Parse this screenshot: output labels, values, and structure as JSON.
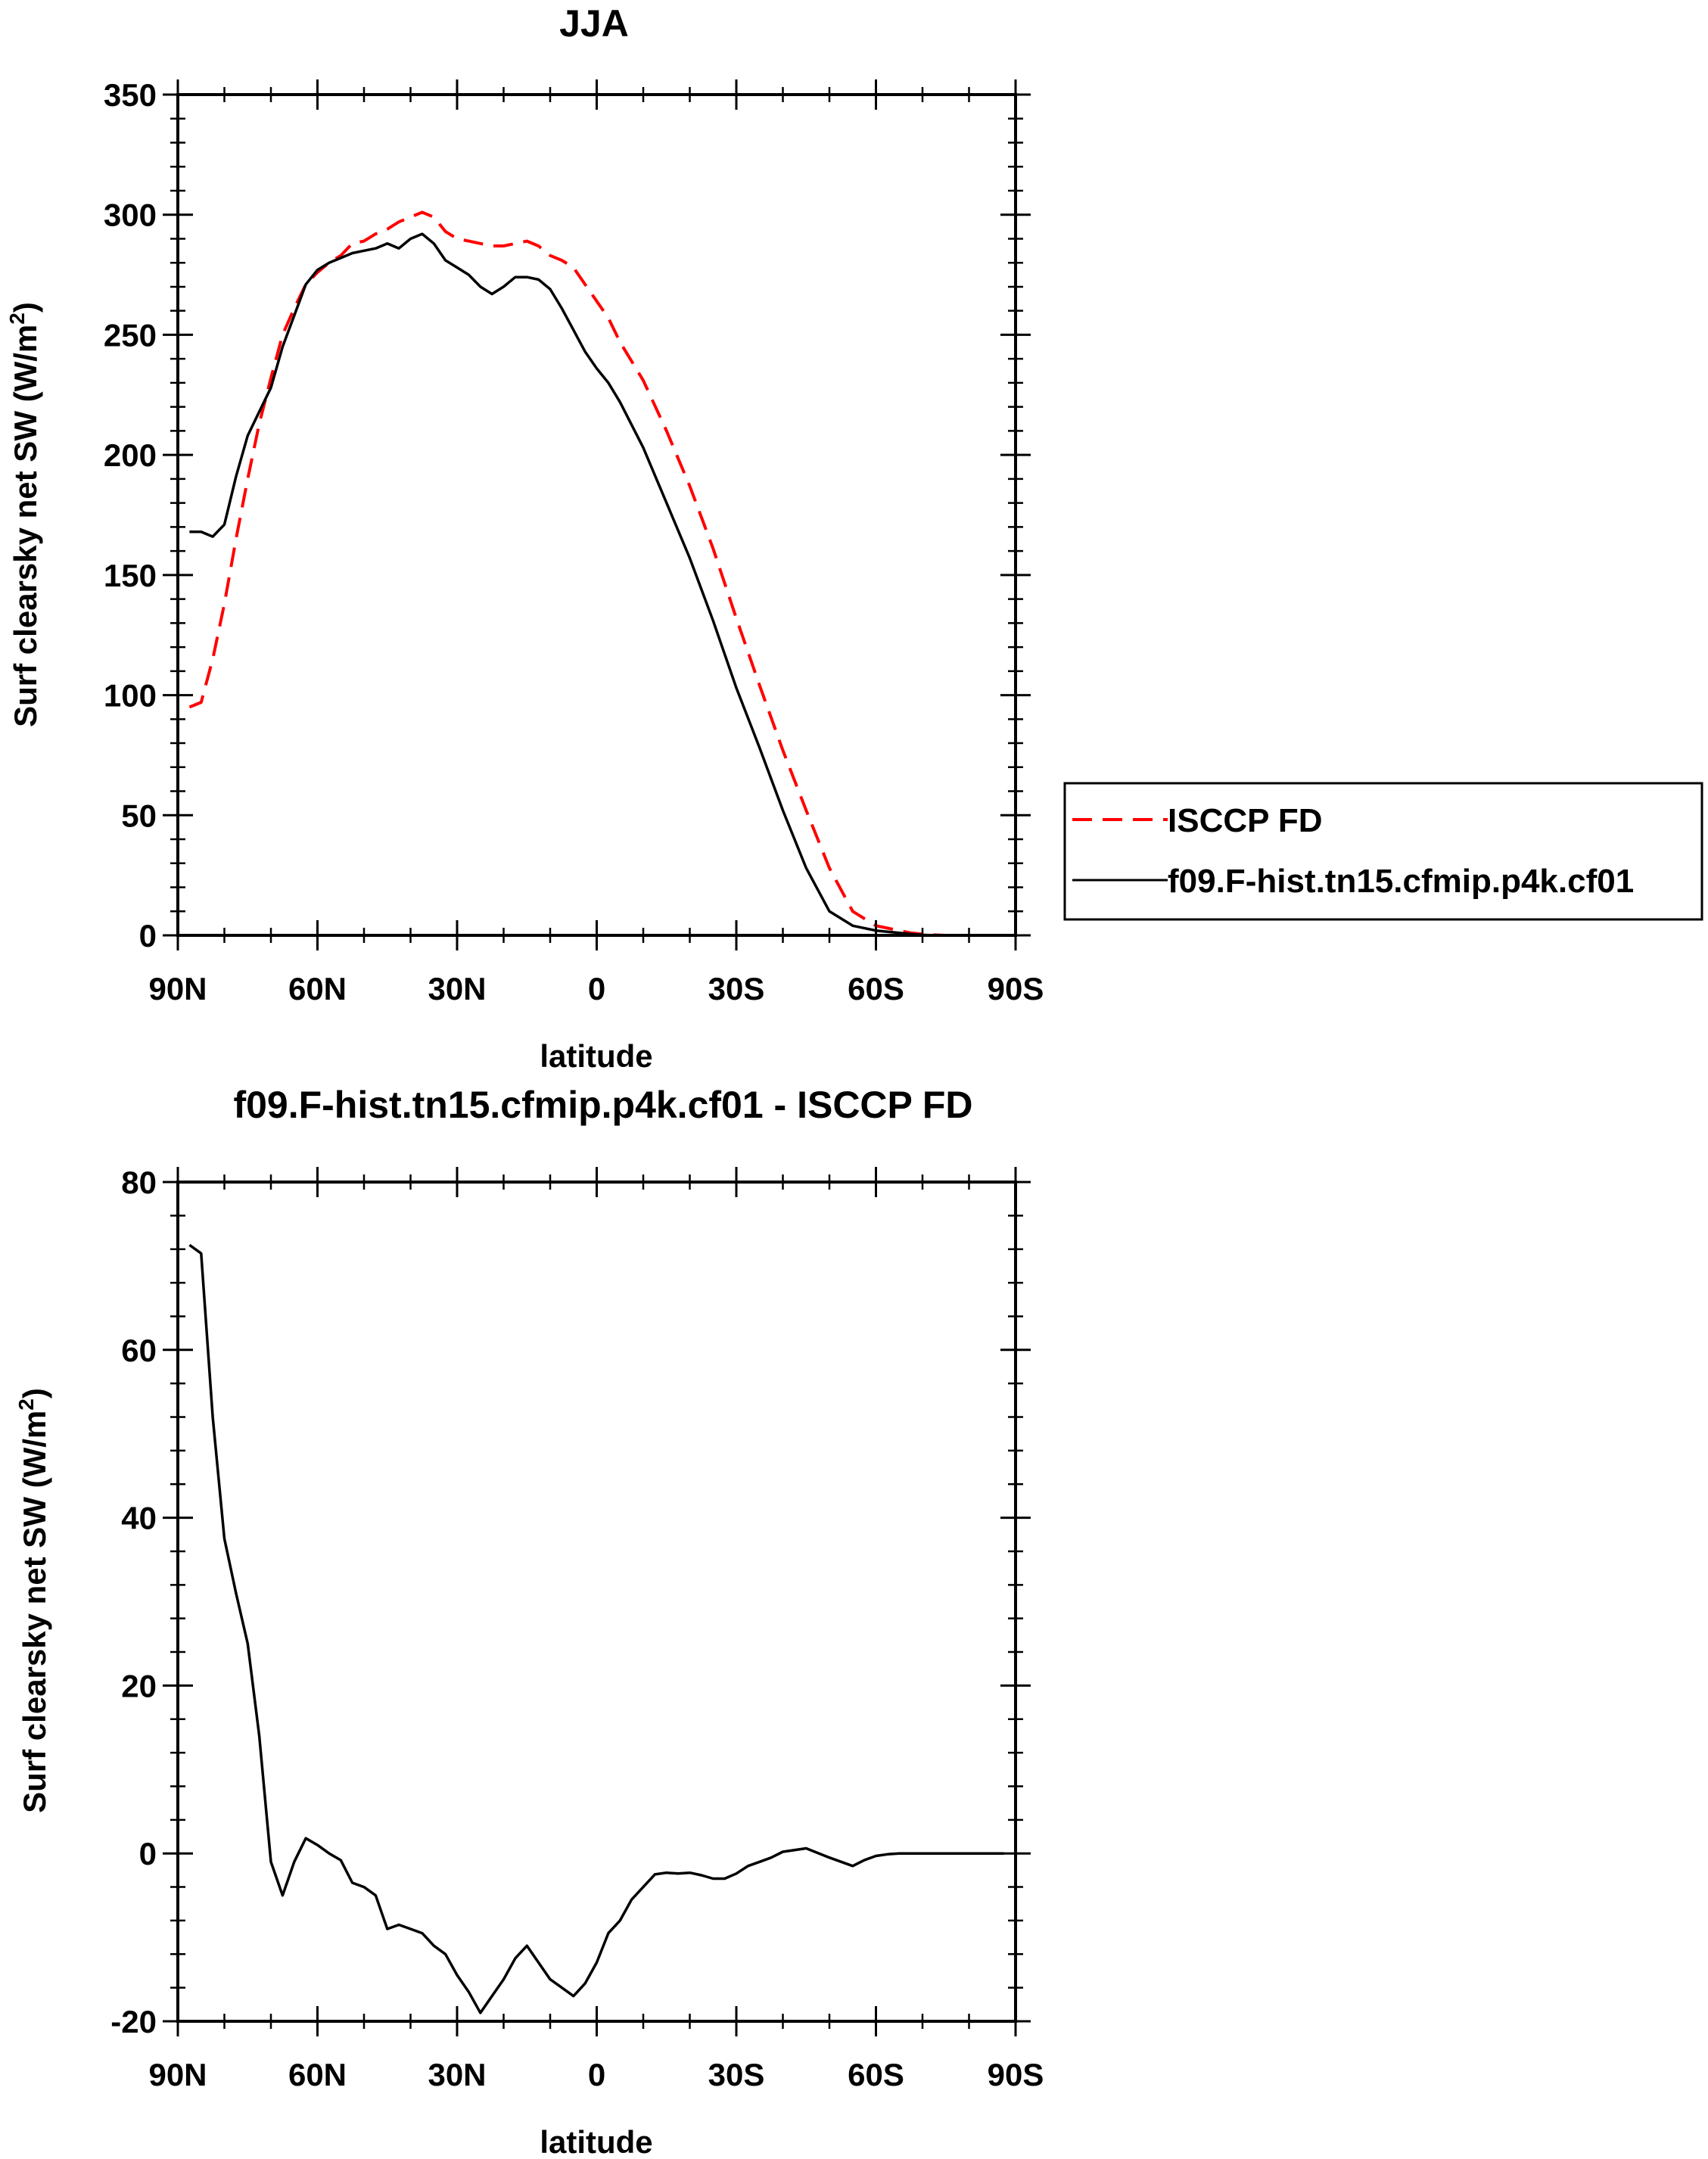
{
  "colors": {
    "model": "#000000",
    "obs": "#ff0000",
    "background": "#ffffff"
  },
  "chart_data": [
    {
      "type": "line",
      "title": "JJA",
      "xlabel": "latitude",
      "ylabel": "Surf clearsky net SW (W/m",
      "ylabel_sup": "2",
      "ylabel_close": ")",
      "xlim": [
        90,
        -90
      ],
      "ylim": [
        0,
        350
      ],
      "xticks": [
        90,
        60,
        30,
        0,
        -30,
        -60,
        -90
      ],
      "xtick_labels": [
        "90N",
        "60N",
        "30N",
        "0",
        "30S",
        "60S",
        "90S"
      ],
      "yticks": [
        0,
        50,
        100,
        150,
        200,
        250,
        300,
        350
      ],
      "ytick_labels": [
        "0",
        "50",
        "100",
        "150",
        "200",
        "250",
        "300",
        "350"
      ],
      "legend_position": "right",
      "series": [
        {
          "name": "ISCCP FD",
          "style": "dashed",
          "color": "#ff0000",
          "x": [
            87.5,
            85,
            82.5,
            80,
            77.5,
            75,
            72.5,
            70,
            67.5,
            65,
            62.5,
            60,
            57.5,
            55,
            52.5,
            50,
            47.5,
            45,
            42.5,
            40,
            37.5,
            35,
            32.5,
            30,
            27.5,
            25,
            22.5,
            20,
            17.5,
            15,
            12.5,
            10,
            7.5,
            5,
            2.5,
            0,
            -2.5,
            -5,
            -10,
            -15,
            -20,
            -25,
            -30,
            -35,
            -40,
            -45,
            -50,
            -55,
            -60,
            -62.5,
            -65,
            -67.5,
            -70,
            -72.5,
            -75,
            -77.5,
            -80,
            -85,
            -87.5
          ],
          "y": [
            95,
            97,
            115,
            138,
            165,
            190,
            213,
            232,
            250,
            261,
            271,
            276,
            280,
            283,
            288,
            289,
            292,
            294,
            297,
            299,
            301,
            299,
            293,
            290,
            289,
            288,
            287,
            287,
            288,
            289,
            287,
            283,
            281,
            278,
            271,
            264,
            257,
            247,
            231,
            210,
            187,
            161,
            132,
            104,
            77,
            52,
            28,
            10,
            4,
            3,
            2,
            1,
            0.5,
            0.2,
            0,
            0,
            0,
            0,
            0
          ]
        },
        {
          "name": "f09.F-hist.tn15.cfmip.p4k.cf01",
          "style": "solid",
          "color": "#000000",
          "x": [
            87.5,
            85,
            82.5,
            80,
            77.5,
            75,
            72.5,
            70,
            67.5,
            65,
            62.5,
            60,
            57.5,
            55,
            52.5,
            50,
            47.5,
            45,
            42.5,
            40,
            37.5,
            35,
            32.5,
            30,
            27.5,
            25,
            22.5,
            20,
            17.5,
            15,
            12.5,
            10,
            7.5,
            5,
            2.5,
            0,
            -2.5,
            -5,
            -10,
            -15,
            -20,
            -25,
            -30,
            -35,
            -40,
            -45,
            -50,
            -55,
            -60,
            -62.5,
            -65,
            -67.5,
            -70,
            -72.5,
            -75,
            -77.5,
            -80,
            -85,
            -87.5
          ],
          "y": [
            168,
            168,
            166,
            171,
            191,
            208,
            218,
            228,
            245,
            258,
            271,
            277,
            280,
            282,
            284,
            285,
            286,
            288,
            286,
            290,
            292,
            288,
            281,
            278,
            275,
            270,
            267,
            270,
            274,
            274,
            273,
            269,
            261,
            252,
            243,
            236,
            230,
            222,
            203,
            180,
            157,
            131,
            103,
            78,
            52,
            28,
            10,
            4,
            2,
            1.5,
            1,
            0.5,
            0.2,
            0,
            0,
            0,
            0,
            0,
            0
          ]
        }
      ]
    },
    {
      "type": "line",
      "title": "f09.F-hist.tn15.cfmip.p4k.cf01 - ISCCP FD",
      "xlabel": "latitude",
      "ylabel": "Surf clearsky net SW (W/m",
      "ylabel_sup": "2",
      "ylabel_close": ")",
      "xlim": [
        90,
        -90
      ],
      "ylim": [
        -20,
        80
      ],
      "xticks": [
        90,
        60,
        30,
        0,
        -30,
        -60,
        -90
      ],
      "xtick_labels": [
        "90N",
        "60N",
        "30N",
        "0",
        "30S",
        "60S",
        "90S"
      ],
      "yticks": [
        -20,
        0,
        20,
        40,
        60,
        80
      ],
      "ytick_labels": [
        "-20",
        "0",
        "20",
        "40",
        "60",
        "80"
      ],
      "series": [
        {
          "style": "solid",
          "color": "#000000",
          "x": [
            87.5,
            85,
            82.5,
            80,
            77.5,
            75,
            72.5,
            70,
            67.5,
            65,
            62.5,
            60,
            57.5,
            55,
            52.5,
            50,
            47.5,
            45,
            42.5,
            40,
            37.5,
            35,
            32.5,
            30,
            27.5,
            25,
            22.5,
            20,
            17.5,
            15,
            12.5,
            10,
            7.5,
            5,
            2.5,
            0,
            -2.5,
            -5,
            -7.5,
            -10,
            -12.5,
            -15,
            -17.5,
            -20,
            -22.5,
            -25,
            -27.5,
            -30,
            -32.5,
            -35,
            -37.5,
            -40,
            -45,
            -50,
            -55,
            -57.5,
            -60,
            -62.5,
            -65,
            -67.5,
            -70,
            -72.5,
            -75,
            -80,
            -85,
            -87.5
          ],
          "y": [
            72.5,
            71.5,
            52,
            37.5,
            31,
            25,
            14,
            -1,
            -5,
            -1,
            1.8,
            1,
            0,
            -0.8,
            -3.5,
            -4,
            -5,
            -9,
            -8.5,
            -9,
            -9.5,
            -11,
            -12,
            -14.5,
            -16.5,
            -19,
            -17,
            -15,
            -12.5,
            -11,
            -13,
            -15,
            -16,
            -17,
            -15.5,
            -13,
            -9.5,
            -8,
            -5.5,
            -4,
            -2.5,
            -2.3,
            -2.4,
            -2.3,
            -2.6,
            -3,
            -3,
            -2.4,
            -1.5,
            -1,
            -0.5,
            0.2,
            0.6,
            -0.5,
            -1.5,
            -0.8,
            -0.3,
            -0.1,
            0,
            0,
            0,
            0,
            0,
            0,
            0,
            0
          ]
        }
      ]
    }
  ]
}
